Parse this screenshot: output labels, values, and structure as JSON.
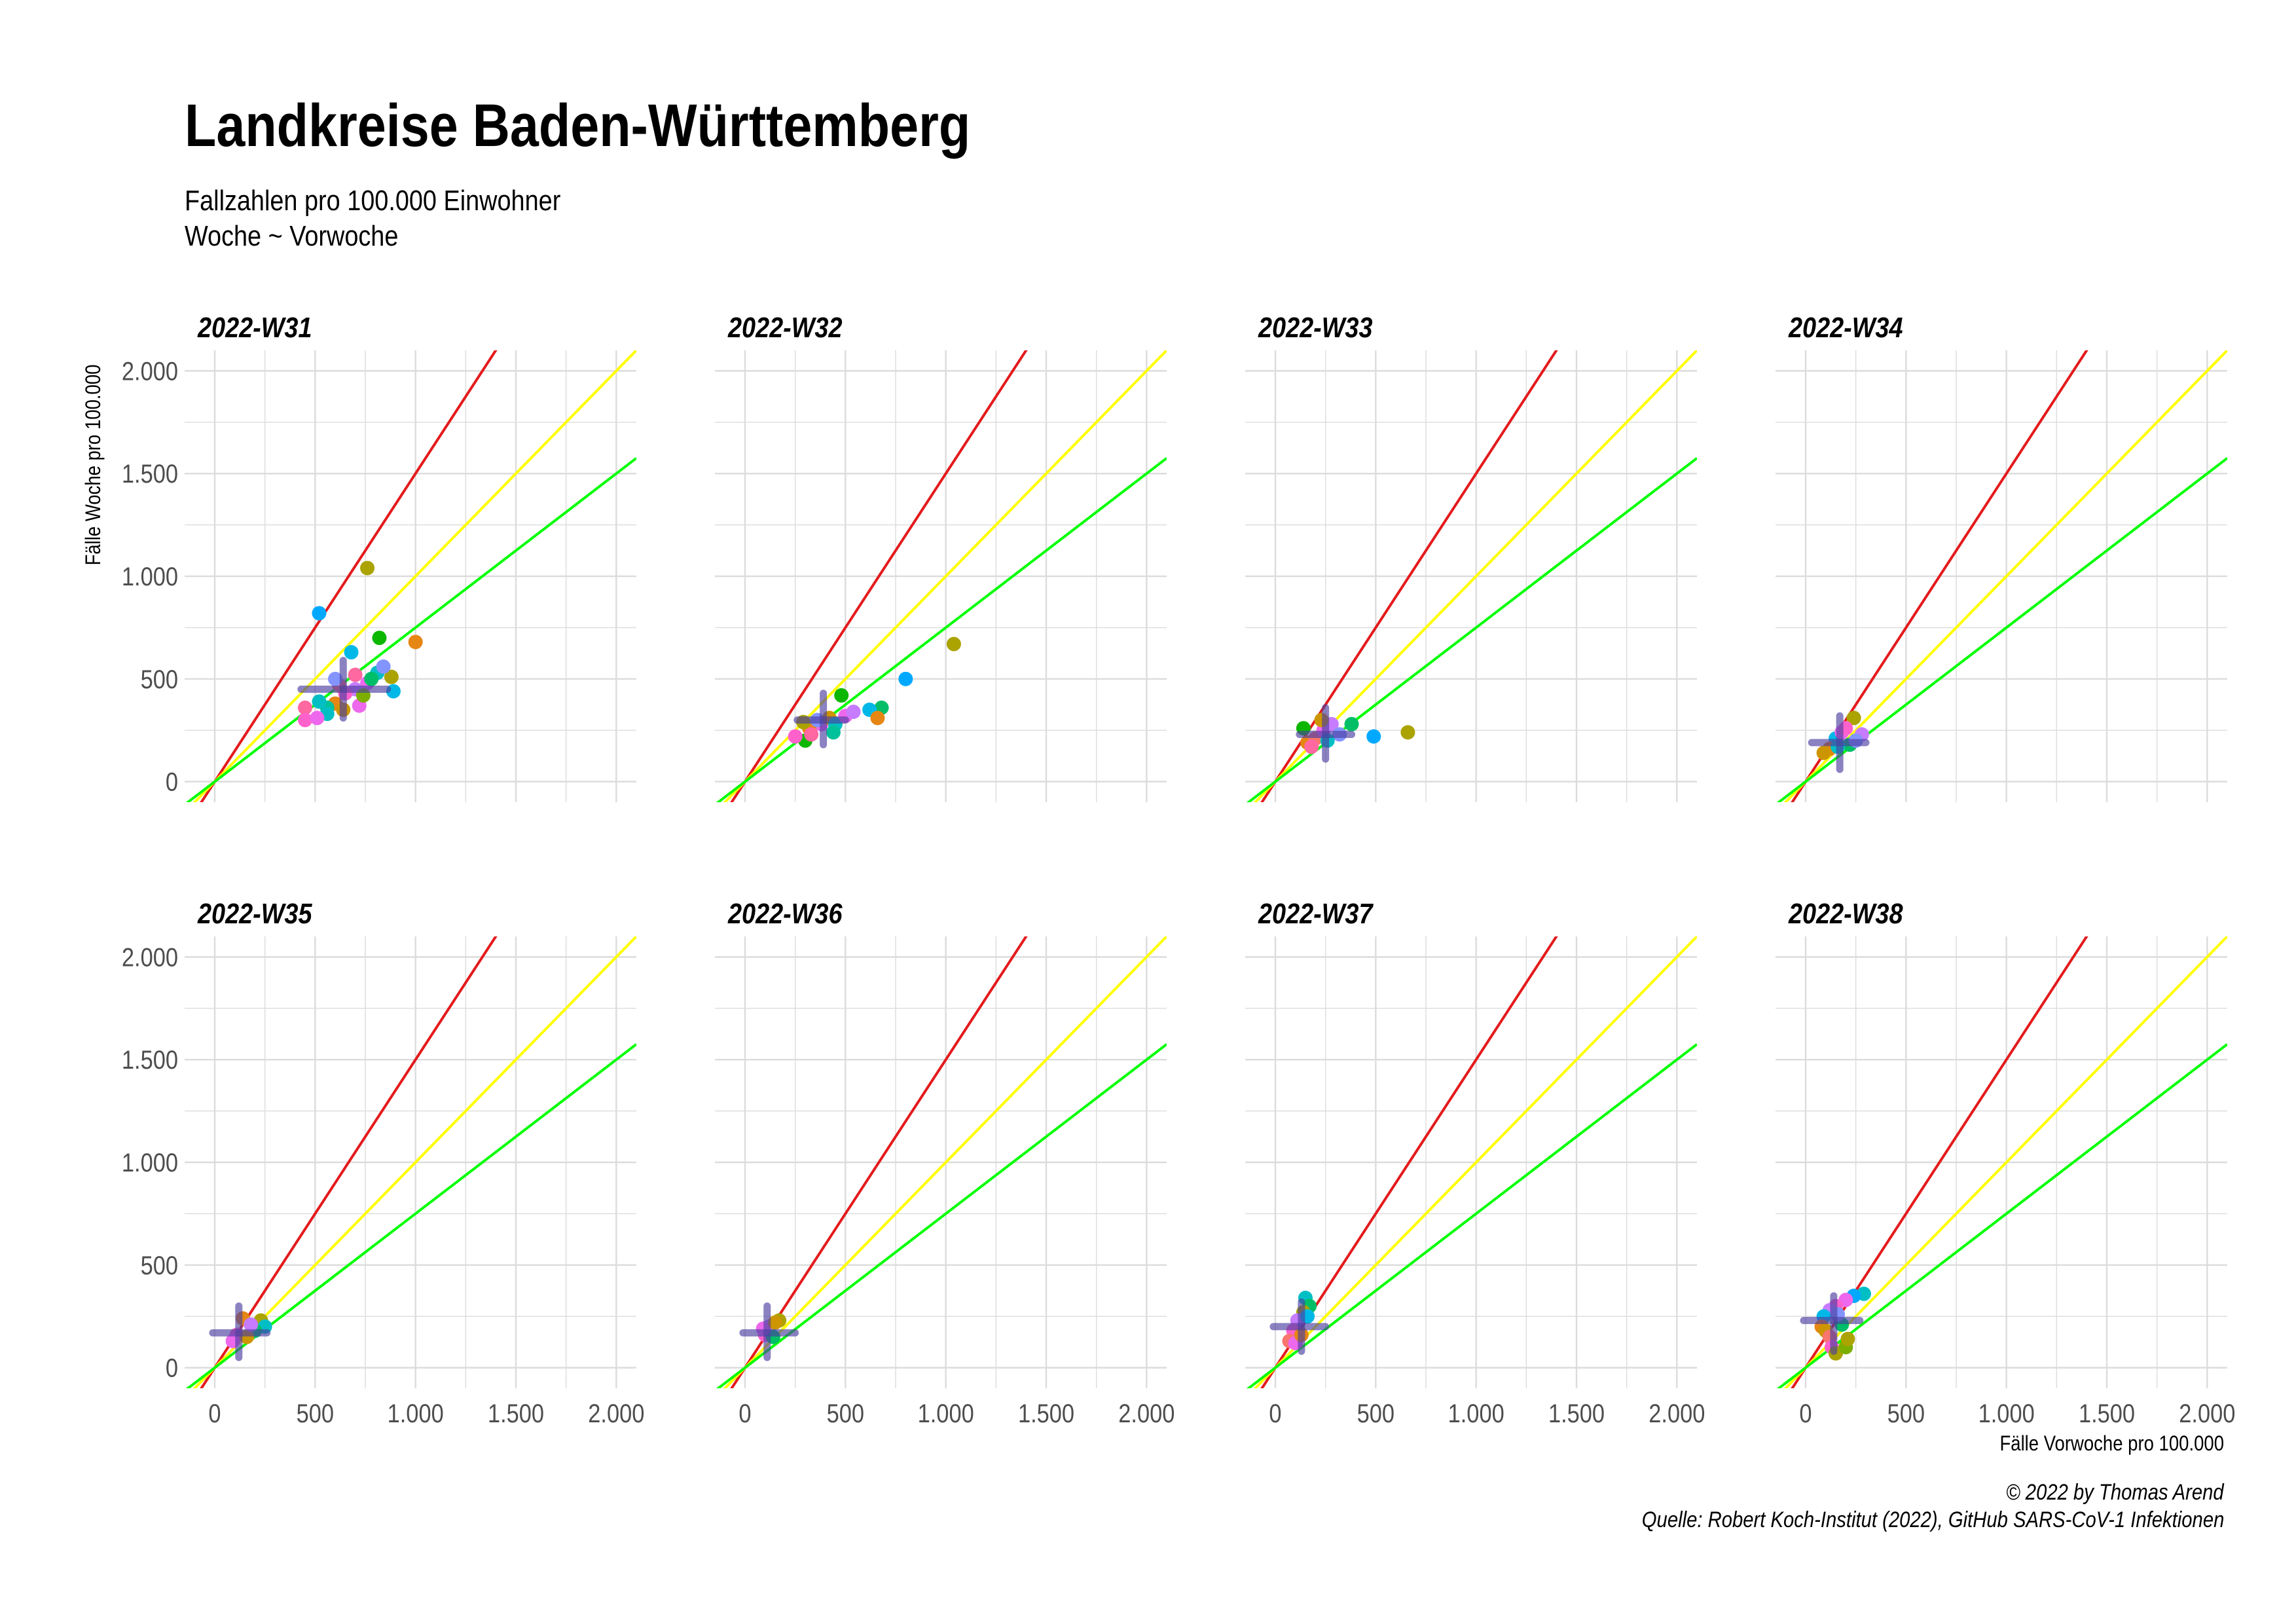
{
  "title": "Landkreise Baden-Württemberg",
  "subtitle_lines": [
    "Fallzahlen pro 100.000 Einwohner",
    "Woche ~ Vorwoche"
  ],
  "caption_lines": [
    "© 2022 by Thomas Arend",
    "Quelle: Robert Koch-Institut (2022), GitHub SARS-CoV-1 Infektionen"
  ],
  "chart_data": {
    "type": "scatter",
    "title": "Landkreise Baden-Württemberg",
    "xlabel": "Fälle Vorwoche pro 100.000",
    "ylabel": "Fälle Woche pro 100.000",
    "xlim": [
      -150,
      2100
    ],
    "ylim": [
      -100,
      2100
    ],
    "x_ticks": [
      0,
      500,
      1000,
      1500,
      2000
    ],
    "y_ticks": [
      0,
      500,
      1000,
      1500,
      2000
    ],
    "tick_labels": [
      "0",
      "500",
      "1.000",
      "1.500",
      "2.000"
    ],
    "grid": true,
    "facets": "2 rows x 4 columns",
    "reference_lines": [
      {
        "name": "red",
        "slope": 1.5,
        "color": "#e41a1c"
      },
      {
        "name": "yellow",
        "slope": 1.0,
        "color": "#ffff00"
      },
      {
        "name": "green",
        "slope": 0.75,
        "color": "#00ff00"
      }
    ],
    "point_colors": [
      "#f8766d",
      "#e68613",
      "#cd9600",
      "#aba300",
      "#7cae00",
      "#0cb702",
      "#00be67",
      "#00c19a",
      "#00bfc4",
      "#00b8e7",
      "#00a9ff",
      "#8494ff",
      "#c77cff",
      "#ed68ed",
      "#ff61cc",
      "#ff68a1"
    ],
    "panels": [
      {
        "title": "2022-W31",
        "cross": {
          "x": 640,
          "y": 450,
          "x_range": [
            430,
            860
          ],
          "y_range": [
            310,
            590
          ]
        },
        "points": [
          [
            520,
            820,
            10
          ],
          [
            760,
            1040,
            3
          ],
          [
            680,
            630,
            9
          ],
          [
            820,
            700,
            5
          ],
          [
            1000,
            680,
            1
          ],
          [
            880,
            510,
            3
          ],
          [
            890,
            440,
            9
          ],
          [
            810,
            530,
            8
          ],
          [
            840,
            560,
            11
          ],
          [
            760,
            480,
            13
          ],
          [
            700,
            450,
            12
          ],
          [
            650,
            430,
            14
          ],
          [
            600,
            380,
            1
          ],
          [
            560,
            360,
            7
          ],
          [
            520,
            390,
            8
          ],
          [
            560,
            330,
            8
          ],
          [
            640,
            350,
            2
          ],
          [
            720,
            370,
            13
          ],
          [
            780,
            500,
            6
          ],
          [
            450,
            360,
            15
          ],
          [
            450,
            300,
            14
          ],
          [
            510,
            310,
            13
          ],
          [
            620,
            470,
            0
          ],
          [
            600,
            500,
            11
          ],
          [
            700,
            520,
            15
          ],
          [
            740,
            420,
            4
          ]
        ]
      },
      {
        "title": "2022-W32",
        "cross": {
          "x": 390,
          "y": 300,
          "x_range": [
            260,
            500
          ],
          "y_range": [
            180,
            430
          ]
        },
        "points": [
          [
            1040,
            670,
            3
          ],
          [
            800,
            500,
            10
          ],
          [
            680,
            360,
            6
          ],
          [
            620,
            350,
            9
          ],
          [
            660,
            310,
            1
          ],
          [
            480,
            420,
            5
          ],
          [
            380,
            280,
            13
          ],
          [
            300,
            200,
            5
          ],
          [
            250,
            220,
            14
          ],
          [
            320,
            260,
            1
          ],
          [
            360,
            300,
            11
          ],
          [
            420,
            310,
            2
          ],
          [
            450,
            280,
            8
          ],
          [
            500,
            320,
            13
          ],
          [
            540,
            340,
            12
          ],
          [
            290,
            290,
            3
          ],
          [
            330,
            230,
            15
          ],
          [
            440,
            240,
            7
          ]
        ]
      },
      {
        "title": "2022-W33",
        "cross": {
          "x": 250,
          "y": 230,
          "x_range": [
            120,
            380
          ],
          "y_range": [
            110,
            360
          ]
        },
        "points": [
          [
            660,
            240,
            3
          ],
          [
            490,
            220,
            10
          ],
          [
            380,
            280,
            6
          ],
          [
            140,
            260,
            5
          ],
          [
            160,
            190,
            1
          ],
          [
            200,
            210,
            0
          ],
          [
            240,
            250,
            13
          ],
          [
            280,
            280,
            12
          ],
          [
            320,
            230,
            11
          ],
          [
            260,
            200,
            8
          ],
          [
            180,
            170,
            15
          ],
          [
            230,
            300,
            2
          ]
        ]
      },
      {
        "title": "2022-W34",
        "cross": {
          "x": 170,
          "y": 190,
          "x_range": [
            30,
            300
          ],
          "y_range": [
            60,
            320
          ]
        },
        "points": [
          [
            240,
            310,
            3
          ],
          [
            280,
            230,
            12
          ],
          [
            220,
            180,
            6
          ],
          [
            150,
            210,
            9
          ],
          [
            120,
            160,
            1
          ],
          [
            90,
            140,
            2
          ],
          [
            180,
            240,
            13
          ],
          [
            200,
            260,
            14
          ],
          [
            250,
            200,
            11
          ],
          [
            160,
            170,
            8
          ]
        ]
      },
      {
        "title": "2022-W35",
        "cross": {
          "x": 120,
          "y": 170,
          "x_range": [
            -10,
            260
          ],
          "y_range": [
            50,
            300
          ]
        },
        "points": [
          [
            230,
            230,
            3
          ],
          [
            250,
            200,
            8
          ],
          [
            200,
            180,
            6
          ],
          [
            140,
            240,
            1
          ],
          [
            110,
            160,
            14
          ],
          [
            90,
            130,
            13
          ],
          [
            160,
            150,
            2
          ],
          [
            180,
            210,
            12
          ]
        ]
      },
      {
        "title": "2022-W36",
        "cross": {
          "x": 110,
          "y": 170,
          "x_range": [
            -10,
            250
          ],
          "y_range": [
            50,
            300
          ]
        },
        "points": [
          [
            170,
            230,
            3
          ],
          [
            120,
            200,
            12
          ],
          [
            100,
            160,
            14
          ],
          [
            140,
            150,
            6
          ],
          [
            90,
            190,
            13
          ],
          [
            150,
            220,
            2
          ]
        ]
      },
      {
        "title": "2022-W37",
        "cross": {
          "x": 130,
          "y": 200,
          "x_range": [
            -10,
            250
          ],
          "y_range": [
            80,
            320
          ]
        },
        "points": [
          [
            150,
            340,
            8
          ],
          [
            170,
            300,
            6
          ],
          [
            140,
            270,
            3
          ],
          [
            110,
            230,
            12
          ],
          [
            90,
            180,
            14
          ],
          [
            70,
            130,
            0
          ],
          [
            100,
            120,
            13
          ],
          [
            130,
            160,
            1
          ],
          [
            160,
            250,
            9
          ]
        ]
      },
      {
        "title": "2022-W38",
        "cross": {
          "x": 140,
          "y": 230,
          "x_range": [
            -10,
            270
          ],
          "y_range": [
            80,
            350
          ]
        },
        "points": [
          [
            290,
            360,
            8
          ],
          [
            240,
            350,
            10
          ],
          [
            200,
            330,
            13
          ],
          [
            150,
            300,
            14
          ],
          [
            120,
            280,
            12
          ],
          [
            90,
            250,
            9
          ],
          [
            80,
            200,
            1
          ],
          [
            100,
            180,
            2
          ],
          [
            120,
            150,
            0
          ],
          [
            130,
            100,
            14
          ],
          [
            150,
            70,
            3
          ],
          [
            200,
            100,
            4
          ],
          [
            210,
            140,
            3
          ],
          [
            180,
            210,
            6
          ],
          [
            160,
            260,
            11
          ]
        ]
      }
    ]
  }
}
